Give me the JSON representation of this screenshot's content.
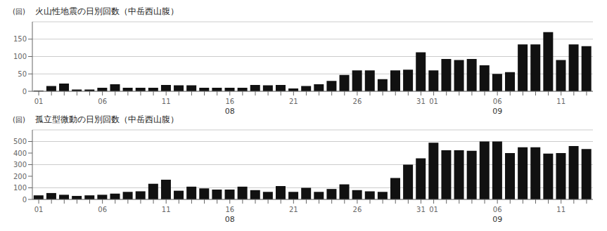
{
  "chart_data": [
    {
      "type": "bar",
      "title": "火山性地震の日別回数（中岳西山腹）",
      "ylabel": "(回)",
      "categories": [
        "01",
        null,
        null,
        null,
        null,
        "06",
        null,
        null,
        null,
        null,
        "11",
        null,
        null,
        null,
        null,
        "16",
        null,
        null,
        null,
        null,
        "21",
        null,
        null,
        null,
        null,
        "26",
        null,
        null,
        null,
        null,
        "31",
        "01",
        null,
        null,
        null,
        null,
        "06",
        null,
        null,
        null,
        null,
        "11",
        null,
        null
      ],
      "values": [
        2,
        15,
        22,
        5,
        5,
        10,
        20,
        10,
        10,
        10,
        18,
        17,
        17,
        10,
        10,
        10,
        10,
        18,
        17,
        18,
        8,
        15,
        20,
        30,
        47,
        60,
        60,
        35,
        60,
        62,
        112,
        60,
        93,
        90,
        93,
        75,
        50,
        55,
        135,
        135,
        170,
        90,
        135,
        130
      ],
      "color": "#111111",
      "ylim": [
        0,
        200
      ],
      "yticks": [
        0,
        50,
        100,
        150
      ],
      "grid": true,
      "annotations": [
        {
          "text": "08",
          "x": 15
        },
        {
          "text": "09",
          "x": 36
        }
      ]
    },
    {
      "type": "bar",
      "title": "孤立型微動の日別回数（中岳西山腹）",
      "ylabel": "(回)",
      "categories": [
        "01",
        null,
        null,
        null,
        null,
        "06",
        null,
        null,
        null,
        null,
        "11",
        null,
        null,
        null,
        null,
        "16",
        null,
        null,
        null,
        null,
        "21",
        null,
        null,
        null,
        null,
        "26",
        null,
        null,
        null,
        null,
        "31",
        "01",
        null,
        null,
        null,
        null,
        "06",
        null,
        null,
        null,
        null,
        "11",
        null,
        null
      ],
      "values": [
        35,
        55,
        40,
        30,
        35,
        40,
        50,
        65,
        70,
        135,
        170,
        75,
        110,
        95,
        85,
        85,
        110,
        80,
        65,
        115,
        65,
        100,
        65,
        90,
        130,
        80,
        70,
        65,
        185,
        300,
        355,
        490,
        425,
        425,
        420,
        500,
        500,
        400,
        450,
        450,
        395,
        400,
        460,
        435
      ],
      "color": "#111111",
      "ylim": [
        0,
        600
      ],
      "yticks": [
        0,
        100,
        200,
        300,
        400,
        500
      ],
      "grid": true,
      "annotations": [
        {
          "text": "08",
          "x": 15
        },
        {
          "text": "09",
          "x": 36
        }
      ]
    }
  ]
}
